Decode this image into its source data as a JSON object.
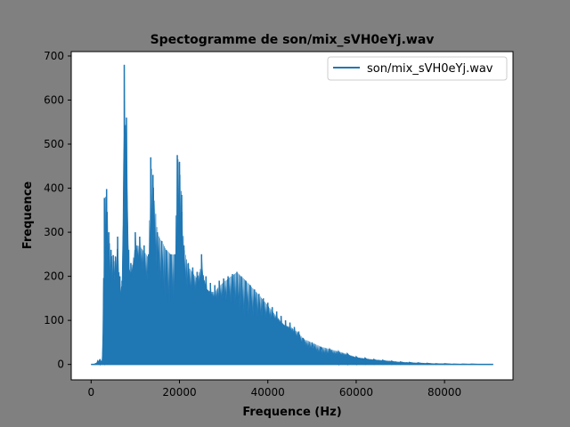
{
  "chart_data": {
    "type": "line",
    "title": "Spectogramme de son/mix_sVH0eYj.wav",
    "xlabel": "Frequence (Hz)",
    "ylabel": "Frequence",
    "xlim": [
      -4500,
      95500
    ],
    "ylim": [
      -35,
      710
    ],
    "xticks": [
      0,
      20000,
      40000,
      60000,
      80000
    ],
    "xtick_labels": [
      "0",
      "20000",
      "40000",
      "60000",
      "80000"
    ],
    "yticks": [
      0,
      100,
      200,
      300,
      400,
      500,
      600,
      700
    ],
    "ytick_labels": [
      "0",
      "100",
      "200",
      "300",
      "400",
      "500",
      "600",
      "700"
    ],
    "grid": false,
    "legend_position": "top-right",
    "series": [
      {
        "name": "son/mix_sVH0eYj.wav",
        "color": "#1f77b4",
        "x": [
          0,
          1000,
          1500,
          2000,
          2500,
          3000,
          3500,
          4000,
          4500,
          5000,
          5500,
          6000,
          6500,
          7000,
          7500,
          8000,
          8500,
          9000,
          10000,
          11000,
          12000,
          13000,
          13500,
          14000,
          15000,
          16000,
          17000,
          18000,
          19000,
          19500,
          20000,
          20500,
          21000,
          22000,
          23000,
          24000,
          25000,
          26000,
          27000,
          28000,
          29000,
          30000,
          31000,
          32000,
          33000,
          34000,
          35000,
          36000,
          37000,
          38000,
          39000,
          40000,
          41000,
          42000,
          43000,
          44000,
          45000,
          46000,
          47000,
          48000,
          50000,
          52000,
          54000,
          56000,
          58000,
          60000,
          62000,
          64000,
          66000,
          68000,
          70000,
          72000,
          74000,
          76000,
          78000,
          80000,
          82000,
          84000,
          86000,
          88000,
          90000,
          91000
        ],
        "values": [
          0,
          2,
          8,
          12,
          5,
          378,
          398,
          300,
          260,
          248,
          245,
          290,
          200,
          190,
          680,
          560,
          260,
          230,
          300,
          290,
          270,
          250,
          470,
          430,
          300,
          280,
          260,
          250,
          250,
          475,
          460,
          385,
          270,
          230,
          220,
          210,
          250,
          200,
          185,
          180,
          190,
          195,
          200,
          205,
          210,
          200,
          190,
          180,
          170,
          160,
          150,
          140,
          130,
          120,
          110,
          100,
          95,
          85,
          75,
          60,
          50,
          40,
          35,
          30,
          25,
          18,
          15,
          12,
          10,
          8,
          6,
          5,
          4,
          3,
          2,
          2,
          1,
          1,
          1,
          0,
          0,
          0
        ]
      }
    ]
  }
}
